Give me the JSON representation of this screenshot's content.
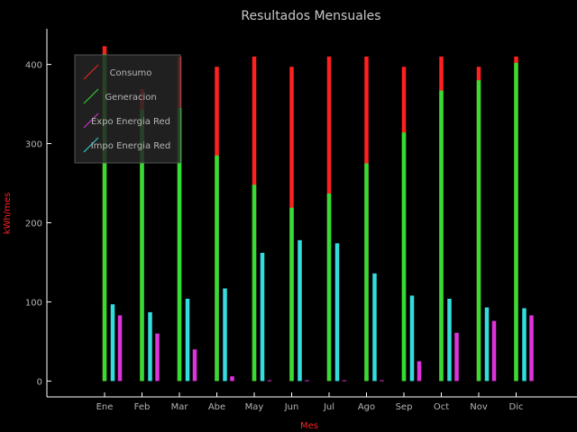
{
  "chart_data": {
    "type": "bar",
    "title": "Resultados Mensuales",
    "xlabel": "Mes",
    "ylabel": "kWh/mes",
    "categories": [
      "Ene",
      "Feb",
      "Mar",
      "Abe",
      "May",
      "Jun",
      "Jul",
      "Ago",
      "Sep",
      "Oct",
      "Nov",
      "Dic"
    ],
    "ylim": [
      -20,
      445
    ],
    "yticks": [
      0,
      100,
      200,
      300,
      400
    ],
    "grid": false,
    "legend_position": "top-left",
    "series": [
      {
        "name": "Consumo",
        "color": "#ff2020",
        "values": [
          423,
          369,
          410,
          397,
          410,
          397,
          410,
          410,
          397,
          410,
          397,
          410
        ],
        "stack": "main"
      },
      {
        "name": "Generacion",
        "color": "#33dd33",
        "values": [
          413,
          343,
          345,
          285,
          248,
          219,
          237,
          275,
          314,
          367,
          380,
          402
        ],
        "stack": "main"
      },
      {
        "name": "Expo Energia Red",
        "color": "#dd33dd",
        "values": [
          83,
          60,
          40,
          6,
          1,
          1,
          1,
          1,
          25,
          61,
          76,
          83
        ]
      },
      {
        "name": "Impo Energia Red",
        "color": "#33dddd",
        "values": [
          97,
          87,
          104,
          117,
          162,
          178,
          174,
          136,
          108,
          104,
          93,
          92
        ]
      }
    ]
  }
}
